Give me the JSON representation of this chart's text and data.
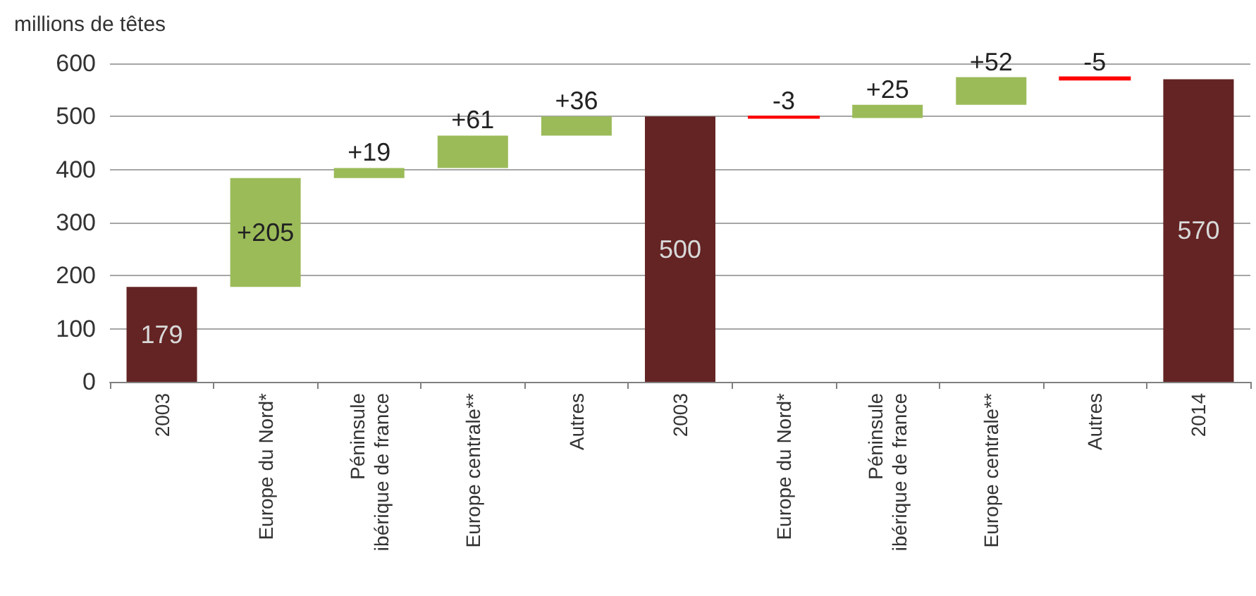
{
  "chart_data": {
    "type": "bar",
    "ylabel": "millions de têtes",
    "categories": [
      "2003",
      "Europe du Nord*",
      "Péninsule ibérique de france",
      "Europe centrale**",
      "Autres",
      "2003",
      "Europe du Nord*",
      "Péninsule ibérique de france",
      "Europe centrale**",
      "Autres",
      "2014"
    ],
    "values": [
      179,
      205,
      19,
      61,
      36,
      500,
      -3,
      25,
      52,
      -5,
      570
    ],
    "base": [
      null,
      179,
      384,
      403,
      464,
      null,
      500,
      497,
      522,
      574,
      null
    ],
    "colors": [
      "#632423",
      "#9bbb59",
      "#9bbb59",
      "#9bbb59",
      "#9bbb59",
      "#632423",
      "#ff0000",
      "#9bbb59",
      "#9bbb59",
      "#ff0000",
      "#632423"
    ],
    "value_labels": [
      "179",
      "+205",
      "+19",
      "+61",
      "+36",
      "500",
      "-3",
      "+25",
      "+52",
      "-5",
      "570"
    ],
    "ylim": [
      0,
      600
    ],
    "yticks": [
      0,
      100,
      200,
      300,
      400,
      500,
      600
    ],
    "grid": "y"
  }
}
